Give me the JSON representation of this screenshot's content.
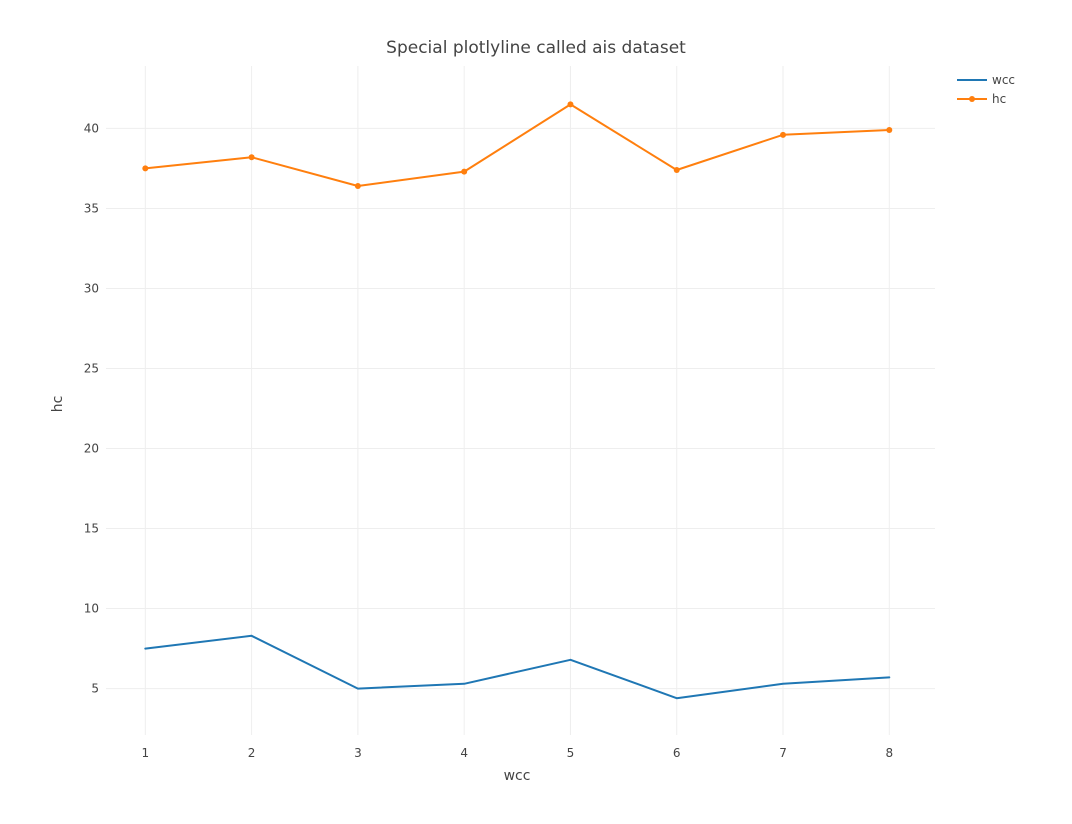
{
  "chart_data": {
    "type": "line",
    "title": "Special plotlyline called ais dataset",
    "xlabel": "wcc",
    "ylabel": "hc",
    "x": [
      1,
      2,
      3,
      4,
      5,
      6,
      7,
      8
    ],
    "xlim": [
      0.63,
      8.43
    ],
    "ylim": [
      2.1,
      43.9
    ],
    "xticks": [
      1,
      2,
      3,
      4,
      5,
      6,
      7,
      8
    ],
    "yticks": [
      5,
      10,
      15,
      20,
      25,
      30,
      35,
      40
    ],
    "grid": true,
    "legend_position": "top-right",
    "series": [
      {
        "name": "wcc",
        "mode": "lines",
        "color": "#1f77b4",
        "values": [
          7.5,
          8.3,
          5.0,
          5.3,
          6.8,
          4.4,
          5.3,
          5.7
        ]
      },
      {
        "name": "hc",
        "mode": "lines+markers",
        "color": "#ff7f0e",
        "values": [
          37.5,
          38.2,
          36.4,
          37.3,
          41.5,
          37.4,
          39.6,
          39.9
        ]
      }
    ]
  }
}
